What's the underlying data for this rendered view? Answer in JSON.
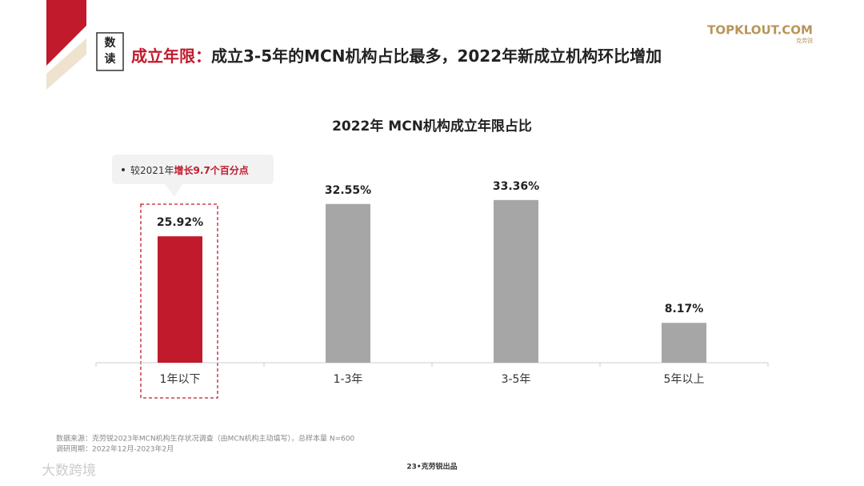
{
  "badge": [
    "数",
    "读"
  ],
  "headline": {
    "highlight": "成立年限：",
    "text": "成立3-5年的MCN机构占比最多，2022年新成立机构环比增加"
  },
  "logo": {
    "name": "TOPKLOUT.COM",
    "brand": "克劳锐"
  },
  "chart_data": {
    "type": "bar",
    "title": "2022年 MCN机构成立年限占比",
    "categories": [
      "1年以下",
      "1-3年",
      "3-5年",
      "5年以上"
    ],
    "values": [
      25.92,
      32.55,
      33.36,
      8.17
    ],
    "value_labels": [
      "25.92%",
      "32.55%",
      "33.36%",
      "8.17%"
    ],
    "colors": [
      "#c01a2c",
      "#a6a6a6",
      "#a6a6a6",
      "#a6a6a6"
    ],
    "annotation": {
      "prefix": "较2021年",
      "highlight": "增长9.7个百分点"
    }
  },
  "footer": {
    "source": "数据来源：克劳锐2023年MCN机构生存状况调查（由MCN机构主动填写），总样本量 N=600",
    "period": "调研周期：2022年12月-2023年2月",
    "page": "23•克劳锐出品"
  },
  "watermark": "大数跨境"
}
